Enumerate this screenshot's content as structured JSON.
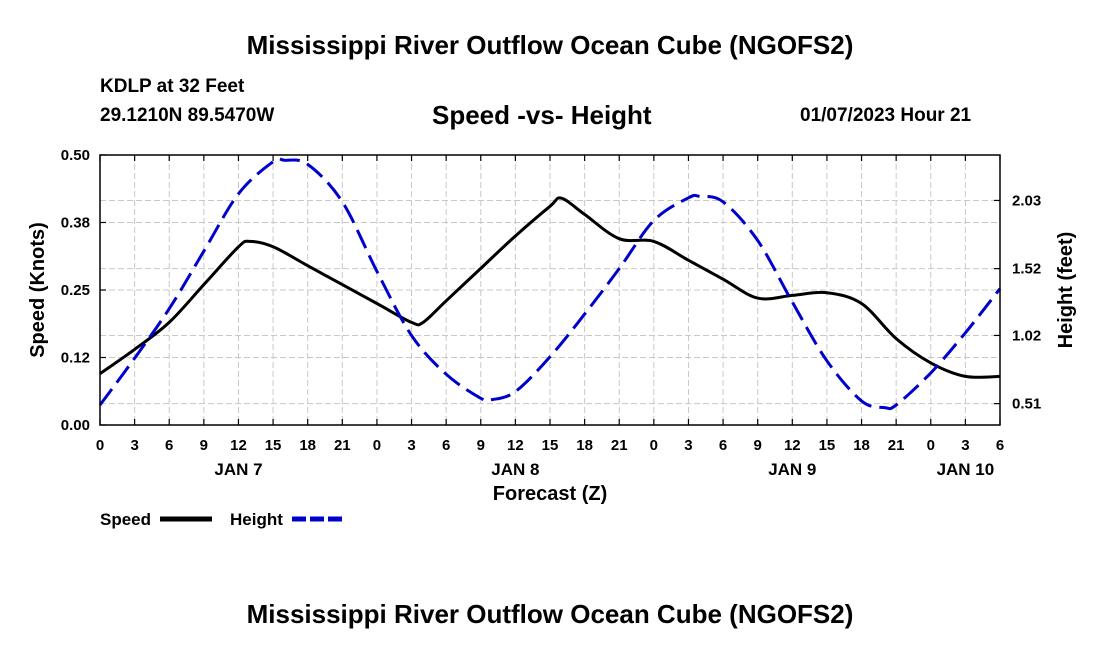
{
  "header": {
    "title": "Mississippi River Outflow Ocean Cube (NGOFS2)",
    "station": "KDLP at 32 Feet",
    "coords": "29.1210N  89.5470W",
    "subtitle": "Speed -vs- Height",
    "datetime": "01/07/2023 Hour 21"
  },
  "footer": {
    "title": "Mississippi River Outflow Ocean Cube (NGOFS2)"
  },
  "chart_data": {
    "type": "line",
    "xlabel": "Forecast (Z)",
    "ylabel": "Speed (Knots)",
    "ylabel_right": "Height (feet)",
    "xlim": [
      0,
      78
    ],
    "ylim": [
      0,
      0.5
    ],
    "ylim_right": [
      0.35,
      2.37
    ],
    "grid": true,
    "x_ticks": [
      0,
      3,
      6,
      9,
      12,
      15,
      18,
      21,
      24,
      27,
      30,
      33,
      36,
      39,
      42,
      45,
      48,
      51,
      54,
      57,
      60,
      63,
      66,
      69,
      72,
      75,
      78
    ],
    "x_tick_labels": [
      "0",
      "3",
      "6",
      "9",
      "12",
      "15",
      "18",
      "21",
      "0",
      "3",
      "6",
      "9",
      "12",
      "15",
      "18",
      "21",
      "0",
      "3",
      "6",
      "9",
      "12",
      "15",
      "18",
      "21",
      "0",
      "3",
      "6"
    ],
    "day_labels": [
      {
        "x": 12,
        "label": "JAN 7"
      },
      {
        "x": 36,
        "label": "JAN 8"
      },
      {
        "x": 60,
        "label": "JAN 9"
      },
      {
        "x": 75,
        "label": "JAN 10"
      }
    ],
    "y_ticks": [
      0,
      0.125,
      0.25,
      0.375,
      0.5
    ],
    "y_tick_labels": [
      "0.00",
      "0.12",
      "0.25",
      "0.38",
      "0.50"
    ],
    "y_ticks_right": [
      0.51,
      1.02,
      1.52,
      2.03
    ],
    "y_tick_labels_right": [
      "0.51",
      "1.02",
      "1.52",
      "2.03"
    ],
    "series": [
      {
        "name": "Speed",
        "axis": "left",
        "color": "#000000",
        "style": "solid",
        "x": [
          0,
          3,
          6,
          9,
          12,
          13,
          15,
          18,
          21,
          24,
          27,
          28,
          30,
          33,
          36,
          39,
          40,
          42,
          45,
          48,
          51,
          54,
          57,
          60,
          63,
          66,
          69,
          72,
          75,
          78
        ],
        "y": [
          0.095,
          0.14,
          0.19,
          0.26,
          0.33,
          0.34,
          0.33,
          0.295,
          0.26,
          0.225,
          0.19,
          0.19,
          0.23,
          0.29,
          0.35,
          0.405,
          0.42,
          0.39,
          0.345,
          0.34,
          0.305,
          0.27,
          0.235,
          0.24,
          0.245,
          0.225,
          0.16,
          0.115,
          0.09,
          0.09
        ]
      },
      {
        "name": "Height",
        "axis": "right",
        "color": "#0000cc",
        "style": "dashed",
        "x": [
          0,
          3,
          6,
          9,
          12,
          15,
          16,
          18,
          21,
          24,
          27,
          30,
          33,
          34,
          36,
          39,
          42,
          45,
          48,
          51,
          52,
          54,
          57,
          60,
          63,
          66,
          68,
          69,
          72,
          75,
          78
        ],
        "y": [
          0.5,
          0.85,
          1.22,
          1.65,
          2.08,
          2.32,
          2.33,
          2.3,
          2.02,
          1.5,
          1.02,
          0.73,
          0.55,
          0.54,
          0.6,
          0.86,
          1.18,
          1.52,
          1.88,
          2.05,
          2.06,
          2.02,
          1.73,
          1.27,
          0.83,
          0.53,
          0.48,
          0.5,
          0.74,
          1.04,
          1.37
        ]
      }
    ],
    "legend": [
      {
        "label": "Speed",
        "color": "#000000",
        "style": "solid"
      },
      {
        "label": "Height",
        "color": "#0000cc",
        "style": "dashed"
      }
    ]
  }
}
